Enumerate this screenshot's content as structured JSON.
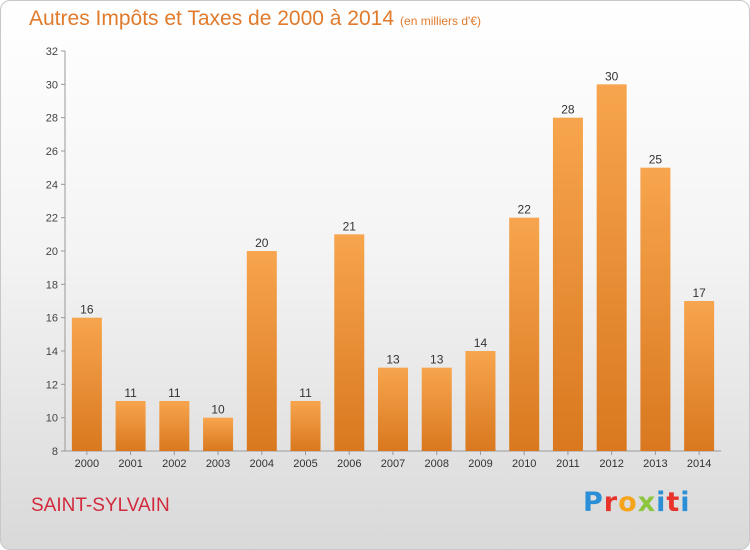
{
  "header": {
    "title": "Autres Impôts et Taxes de 2000 à 2014",
    "subtitle": "(en milliers d'€)"
  },
  "footer": {
    "commune": "SAINT-SYLVAIN",
    "logo_text": "Proxiti"
  },
  "colors": {
    "accent": "#e07a2c",
    "commune": "#d22a3c",
    "bar_light": "#f7a54e",
    "bar_dark": "#d9781f"
  },
  "chart_data": {
    "type": "bar",
    "title": "Autres Impôts et Taxes de 2000 à 2014",
    "subtitle": "(en milliers d'€)",
    "categories": [
      "2000",
      "2001",
      "2002",
      "2003",
      "2004",
      "2005",
      "2006",
      "2007",
      "2008",
      "2009",
      "2010",
      "2011",
      "2012",
      "2013",
      "2014"
    ],
    "values": [
      16,
      11,
      11,
      10,
      20,
      11,
      21,
      13,
      13,
      14,
      22,
      28,
      30,
      25,
      17
    ],
    "ylim": [
      8,
      32
    ],
    "yticks": [
      8,
      10,
      12,
      14,
      16,
      18,
      20,
      22,
      24,
      26,
      28,
      30,
      32
    ],
    "xlabel": "",
    "ylabel": "",
    "grid": false,
    "data_labels": true
  }
}
